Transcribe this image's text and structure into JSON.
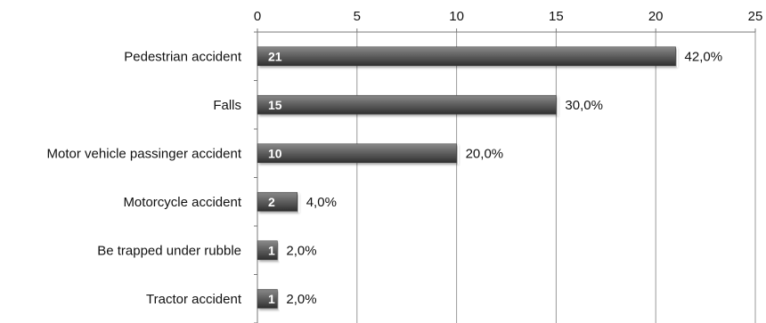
{
  "chart_data": {
    "type": "bar",
    "orientation": "horizontal",
    "categories": [
      "Pedestrian accident",
      "Falls",
      "Motor vehicle passinger accident",
      "Motorcycle accident",
      "Be trapped under rubble",
      "Tractor accident"
    ],
    "values": [
      21,
      15,
      10,
      2,
      1,
      1
    ],
    "data_labels": [
      "21",
      "15",
      "10",
      "2",
      "1",
      "1"
    ],
    "percent_labels": [
      "42,0%",
      "30,0%",
      "20,0%",
      "4,0%",
      "2,0%",
      "2,0%"
    ],
    "xlim": [
      0,
      25
    ],
    "x_ticks": [
      "0",
      "5",
      "10",
      "15",
      "20",
      "25"
    ],
    "x_axis_position": "top",
    "grid": true,
    "legend": "none",
    "title": "",
    "xlabel": "",
    "ylabel": "",
    "colors": {
      "bar": "#5a5a5a",
      "bar_highlight": "#8a8a8a",
      "bar_shadow": "#2e2e2e",
      "grid": "#9a9a9a"
    }
  }
}
